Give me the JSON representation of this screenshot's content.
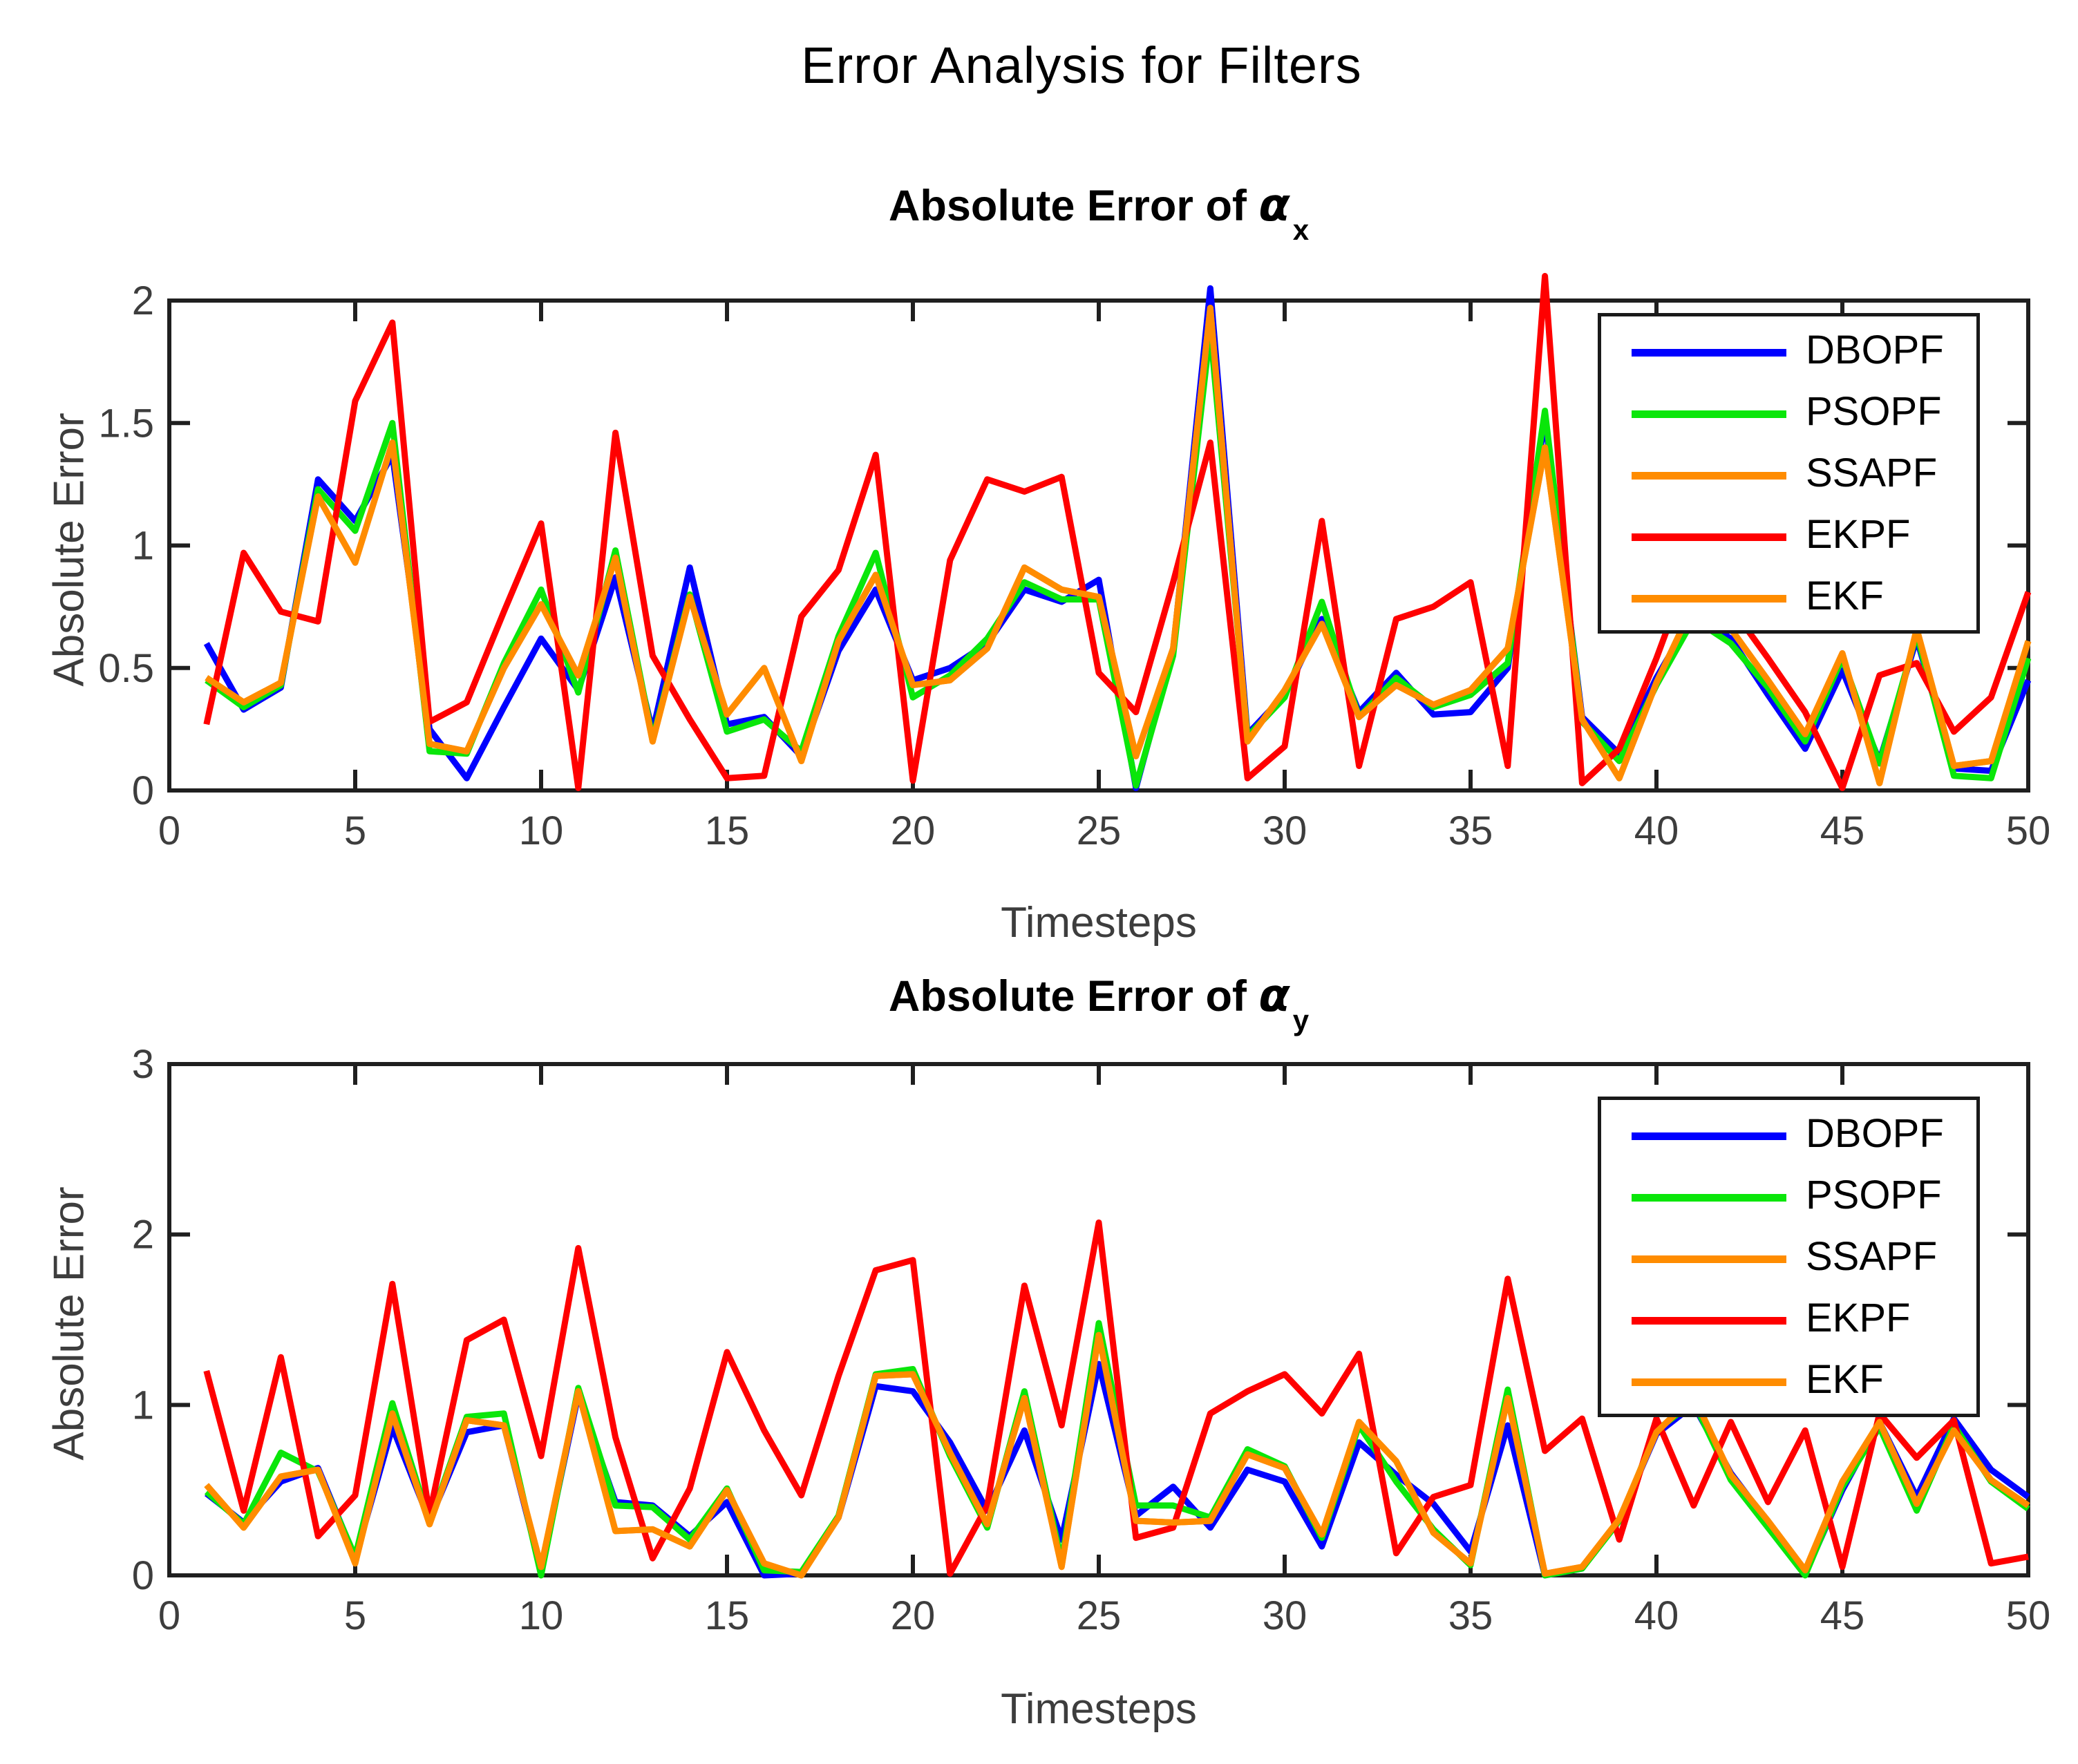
{
  "title": "Error Analysis for Filters",
  "chart_data": [
    {
      "type": "line",
      "title_prefix": "Absolute Error of ",
      "title_symbol": "α",
      "title_subscript": "x",
      "xlabel": "Timesteps",
      "ylabel": "Absolute Error",
      "xlim": [
        0,
        50
      ],
      "ylim": [
        0,
        2
      ],
      "xticks": [
        0,
        5,
        10,
        15,
        20,
        25,
        30,
        35,
        40,
        45,
        50
      ],
      "yticks": [
        0,
        0.5,
        1,
        1.5,
        2
      ],
      "grid": false,
      "legend_position": "upper-right",
      "x_start": 1,
      "x_step": 1,
      "series": [
        {
          "name": "DBOPF",
          "color": "#0000ff",
          "values": [
            0.6,
            0.33,
            0.42,
            1.27,
            1.1,
            1.37,
            0.25,
            0.05,
            0.34,
            0.62,
            0.41,
            0.87,
            0.24,
            0.91,
            0.27,
            0.3,
            0.14,
            0.57,
            0.82,
            0.45,
            0.5,
            0.6,
            0.82,
            0.77,
            0.86,
            0.01,
            0.57,
            2.05,
            0.23,
            0.39,
            0.7,
            0.32,
            0.48,
            0.31,
            0.32,
            0.5,
            1.52,
            0.3,
            0.15,
            0.46,
            0.72,
            0.62,
            0.39,
            0.17,
            0.49,
            0.12,
            0.62,
            0.09,
            0.08,
            0.45
          ]
        },
        {
          "name": "PSOPF",
          "color": "#0ae60a",
          "values": [
            0.45,
            0.34,
            0.43,
            1.23,
            1.06,
            1.5,
            0.16,
            0.15,
            0.52,
            0.82,
            0.4,
            0.98,
            0.21,
            0.8,
            0.24,
            0.29,
            0.16,
            0.63,
            0.97,
            0.38,
            0.47,
            0.62,
            0.85,
            0.78,
            0.78,
            0.02,
            0.55,
            1.88,
            0.22,
            0.38,
            0.77,
            0.3,
            0.46,
            0.34,
            0.39,
            0.52,
            1.55,
            0.28,
            0.12,
            0.43,
            0.7,
            0.6,
            0.42,
            0.2,
            0.54,
            0.11,
            0.64,
            0.06,
            0.05,
            0.54
          ]
        },
        {
          "name": "SSAPF",
          "color": "#ff8c00",
          "values": [
            0.46,
            0.36,
            0.44,
            1.2,
            0.93,
            1.42,
            0.19,
            0.16,
            0.5,
            0.76,
            0.47,
            0.95,
            0.2,
            0.79,
            0.31,
            0.5,
            0.12,
            0.61,
            0.88,
            0.43,
            0.45,
            0.58,
            0.91,
            0.82,
            0.79,
            0.14,
            0.58,
            1.97,
            0.2,
            0.41,
            0.68,
            0.3,
            0.43,
            0.35,
            0.41,
            0.58,
            1.4,
            0.29,
            0.05,
            0.44,
            0.76,
            0.66,
            0.45,
            0.23,
            0.56,
            0.03,
            0.66,
            0.1,
            0.12,
            0.61
          ]
        },
        {
          "name": "EKPF",
          "color": "#ff0000",
          "values": [
            0.27,
            0.97,
            0.73,
            0.69,
            1.59,
            1.91,
            0.28,
            0.36,
            0.73,
            1.09,
            0.01,
            1.46,
            0.55,
            0.29,
            0.05,
            0.06,
            0.71,
            0.9,
            1.37,
            0.04,
            0.94,
            1.27,
            1.22,
            1.28,
            0.48,
            0.32,
            0.85,
            1.42,
            0.05,
            0.18,
            1.1,
            0.1,
            0.7,
            0.75,
            0.85,
            0.1,
            2.1,
            0.03,
            0.17,
            0.54,
            0.95,
            0.75,
            0.54,
            0.32,
            0.01,
            0.47,
            0.52,
            0.24,
            0.38,
            0.81
          ]
        },
        {
          "name": "EKF",
          "color": "#ff8c00",
          "values": [
            0.46,
            0.36,
            0.44,
            1.2,
            0.93,
            1.42,
            0.19,
            0.16,
            0.5,
            0.76,
            0.47,
            0.95,
            0.2,
            0.79,
            0.31,
            0.5,
            0.12,
            0.61,
            0.88,
            0.43,
            0.45,
            0.58,
            0.91,
            0.82,
            0.79,
            0.14,
            0.58,
            1.97,
            0.2,
            0.41,
            0.68,
            0.3,
            0.43,
            0.35,
            0.41,
            0.58,
            1.4,
            0.29,
            0.05,
            0.44,
            0.76,
            0.66,
            0.45,
            0.23,
            0.56,
            0.03,
            0.66,
            0.1,
            0.12,
            0.61
          ]
        }
      ]
    },
    {
      "type": "line",
      "title_prefix": "Absolute Error of ",
      "title_symbol": "α",
      "title_subscript": "y",
      "xlabel": "Timesteps",
      "ylabel": "Absolute Error",
      "xlim": [
        0,
        50
      ],
      "ylim": [
        0,
        3
      ],
      "xticks": [
        0,
        5,
        10,
        15,
        20,
        25,
        30,
        35,
        40,
        45,
        50
      ],
      "yticks": [
        0,
        1,
        2,
        3
      ],
      "grid": false,
      "legend_position": "upper-right",
      "x_start": 1,
      "x_step": 1,
      "series": [
        {
          "name": "DBOPF",
          "color": "#0000ff",
          "values": [
            0.48,
            0.31,
            0.55,
            0.63,
            0.1,
            0.87,
            0.32,
            0.84,
            0.88,
            0.03,
            1.06,
            0.43,
            0.41,
            0.23,
            0.43,
            0.0,
            0.01,
            0.34,
            1.11,
            1.08,
            0.78,
            0.38,
            0.85,
            0.21,
            1.24,
            0.35,
            0.52,
            0.28,
            0.62,
            0.55,
            0.17,
            0.78,
            0.59,
            0.42,
            0.14,
            0.88,
            0.0,
            0.04,
            0.33,
            0.83,
            1.0,
            0.6,
            0.31,
            0.01,
            0.5,
            0.9,
            0.46,
            0.92,
            0.62,
            0.46
          ]
        },
        {
          "name": "PSOPF",
          "color": "#0ae60a",
          "values": [
            0.49,
            0.3,
            0.72,
            0.61,
            0.11,
            1.01,
            0.31,
            0.93,
            0.95,
            0.0,
            1.1,
            0.41,
            0.4,
            0.21,
            0.51,
            0.03,
            0.02,
            0.35,
            1.18,
            1.21,
            0.7,
            0.28,
            1.08,
            0.08,
            1.48,
            0.41,
            0.41,
            0.34,
            0.74,
            0.64,
            0.22,
            0.88,
            0.55,
            0.27,
            0.06,
            1.09,
            0.0,
            0.04,
            0.32,
            0.85,
            1.02,
            0.56,
            0.28,
            0.0,
            0.52,
            0.87,
            0.38,
            0.88,
            0.55,
            0.39
          ]
        },
        {
          "name": "SSAPF",
          "color": "#ff8c00",
          "values": [
            0.53,
            0.28,
            0.58,
            0.62,
            0.07,
            0.95,
            0.3,
            0.91,
            0.88,
            0.05,
            1.08,
            0.26,
            0.27,
            0.17,
            0.5,
            0.07,
            0.0,
            0.34,
            1.17,
            1.18,
            0.72,
            0.3,
            1.04,
            0.05,
            1.41,
            0.32,
            0.31,
            0.32,
            0.71,
            0.63,
            0.24,
            0.9,
            0.67,
            0.25,
            0.07,
            1.04,
            0.01,
            0.05,
            0.33,
            0.84,
            1.05,
            0.59,
            0.32,
            0.03,
            0.55,
            0.9,
            0.42,
            0.85,
            0.56,
            0.41
          ]
        },
        {
          "name": "EKPF",
          "color": "#ff0000",
          "values": [
            1.2,
            0.38,
            1.28,
            0.23,
            0.47,
            1.71,
            0.36,
            1.38,
            1.5,
            0.7,
            1.92,
            0.81,
            0.1,
            0.51,
            1.31,
            0.85,
            0.47,
            1.17,
            1.79,
            1.85,
            0.01,
            0.41,
            1.7,
            0.88,
            2.07,
            0.22,
            0.28,
            0.95,
            1.08,
            1.18,
            0.95,
            1.3,
            0.13,
            0.46,
            0.53,
            1.74,
            0.73,
            0.92,
            0.21,
            0.92,
            0.41,
            0.9,
            0.43,
            0.85,
            0.05,
            0.95,
            0.69,
            0.91,
            0.07,
            0.11
          ]
        },
        {
          "name": "EKF",
          "color": "#ff8c00",
          "values": [
            0.53,
            0.28,
            0.58,
            0.62,
            0.07,
            0.95,
            0.3,
            0.91,
            0.88,
            0.05,
            1.08,
            0.26,
            0.27,
            0.17,
            0.5,
            0.07,
            0.0,
            0.34,
            1.17,
            1.18,
            0.72,
            0.3,
            1.04,
            0.05,
            1.41,
            0.32,
            0.31,
            0.32,
            0.71,
            0.63,
            0.24,
            0.9,
            0.67,
            0.25,
            0.07,
            1.04,
            0.01,
            0.05,
            0.33,
            0.84,
            1.05,
            0.59,
            0.32,
            0.03,
            0.55,
            0.9,
            0.42,
            0.85,
            0.56,
            0.41
          ]
        }
      ]
    }
  ]
}
